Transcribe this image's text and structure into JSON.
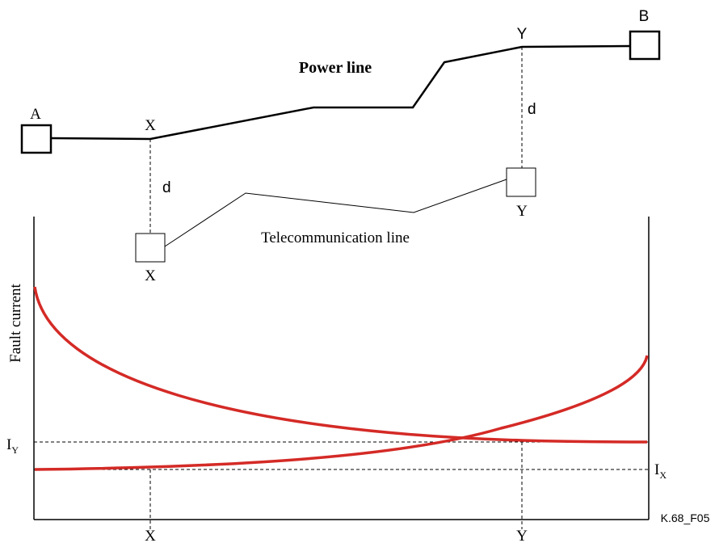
{
  "power_line": {
    "label": "Power line",
    "end_a": "A",
    "end_b": "B",
    "point_x": "X",
    "point_y": "Y"
  },
  "telecom_line": {
    "label": "Telecommunication line",
    "point_x": "X",
    "point_y": "Y"
  },
  "separation_x": "d",
  "separation_y": "d",
  "graph": {
    "ylabel": "Fault current",
    "level_y": {
      "base": "I",
      "sub": "Y"
    },
    "level_x": {
      "base": "I",
      "sub": "X"
    },
    "xtick_x": "X",
    "xtick_y": "Y"
  },
  "figure_id": "K.68_F05",
  "colors": {
    "curve": "#d42a26",
    "line": "#000000"
  }
}
